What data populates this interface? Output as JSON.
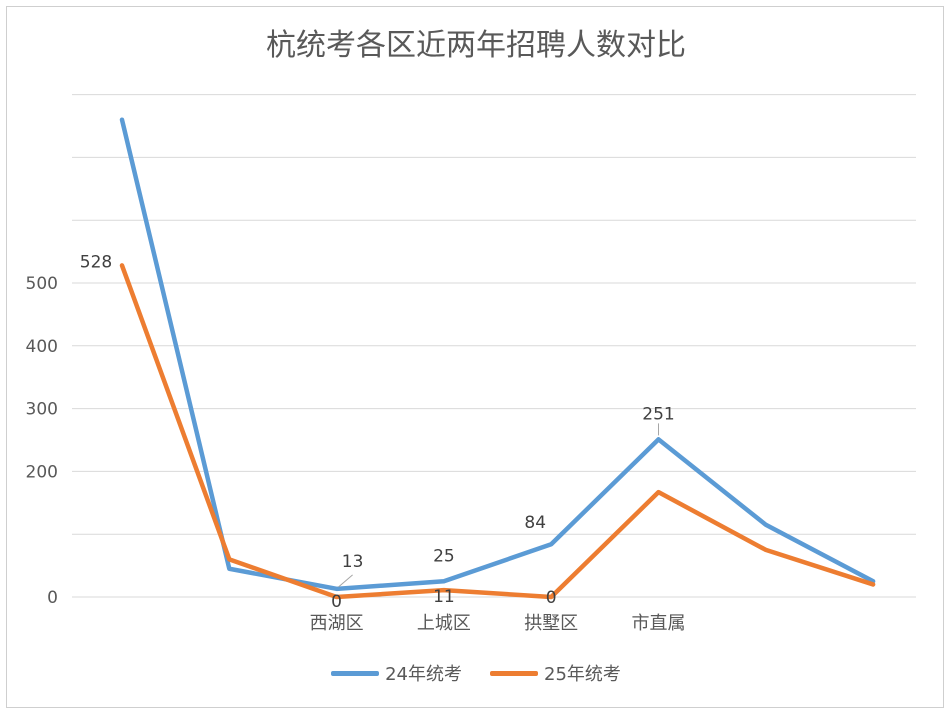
{
  "chart_data": {
    "type": "line",
    "title": "杭统考各区近两年招聘人数对比",
    "ylim": [
      0,
      800
    ],
    "yticks": [
      0,
      100,
      200,
      300,
      400,
      500
    ],
    "ytick_labels": [
      "0",
      "",
      "200",
      "300",
      "400",
      "500"
    ],
    "categories": [
      "",
      "",
      "西湖区",
      "上城区",
      "拱墅区",
      "市直属",
      "",
      ""
    ],
    "series": [
      {
        "name": "24年统考",
        "color": "#5b9bd5",
        "values": [
          760,
          45,
          13,
          25,
          84,
          251,
          115,
          25
        ],
        "labels": [
          "",
          "",
          "13",
          "25",
          "84",
          "251",
          "",
          ""
        ]
      },
      {
        "name": "25年统考",
        "color": "#ed7d31",
        "values": [
          528,
          60,
          0,
          11,
          0,
          167,
          75,
          20
        ],
        "labels": [
          "528",
          "",
          "0",
          "11",
          "0",
          "",
          "",
          ""
        ]
      }
    ],
    "grid": true,
    "legend_position": "bottom"
  }
}
